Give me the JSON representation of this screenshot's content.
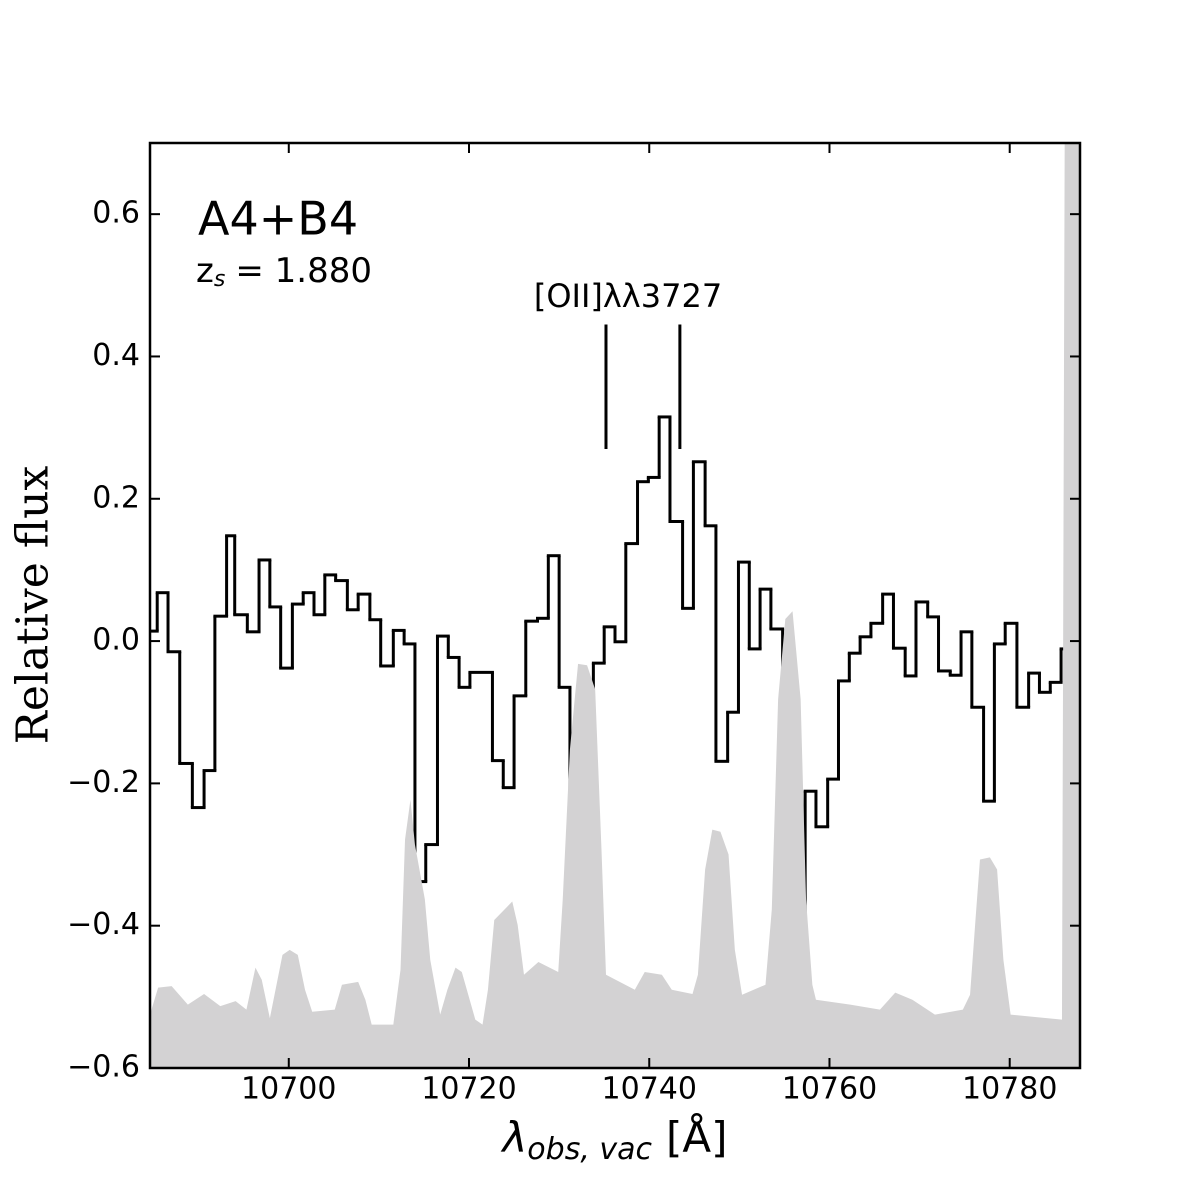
{
  "chart_data": {
    "type": "step",
    "ylabel": "Relative flux",
    "xlabel_symbol": "λ",
    "xlabel_sub": "obs, vac",
    "xlabel_unit": "[Å]",
    "annotation": "A4+B4",
    "redshift_symbol": "z",
    "redshift_sub": "s",
    "redshift_text": "= 1.880",
    "xlim": [
      10684.6,
      10787.8
    ],
    "ylim": [
      -0.6,
      0.7
    ],
    "xticks": [
      10700,
      10720,
      10740,
      10760,
      10780
    ],
    "yticks": [
      {
        "value": -0.6,
        "label": "−0.6"
      },
      {
        "value": -0.4,
        "label": "−0.4"
      },
      {
        "value": -0.2,
        "label": "−0.2"
      },
      {
        "value": 0.0,
        "label": "0.0"
      },
      0.2,
      0.4,
      0.6
    ],
    "lines": {
      "label": "[OII]λλ3727",
      "x": [
        10735.2,
        10743.4
      ],
      "y_range": [
        0.27,
        0.445
      ],
      "color": "#000000"
    },
    "series": [
      {
        "kind": "step",
        "color": "#000000",
        "x": [
          10684.6,
          10685.4,
          10686.6,
          10687.9,
          10689.3,
          10690.6,
          10691.8,
          10693.1,
          10694.0,
          10695.4,
          10696.7,
          10697.9,
          10699.1,
          10700.4,
          10701.6,
          10702.8,
          10704.0,
          10705.2,
          10706.5,
          10707.7,
          10709.0,
          10710.2,
          10711.6,
          10712.8,
          10714.0,
          10715.2,
          10716.5,
          10717.7,
          10718.9,
          10720.1,
          10722.6,
          10723.8,
          10725.0,
          10726.3,
          10727.6,
          10728.8,
          10730.0,
          10731.2,
          10732.4,
          10733.8,
          10735.0,
          10736.2,
          10737.4,
          10738.7,
          10739.9,
          10741.1,
          10742.3,
          10743.7,
          10744.9,
          10746.2,
          10747.4,
          10748.7,
          10749.9,
          10751.1,
          10752.3,
          10753.5,
          10754.8,
          10756.0,
          10757.3,
          10758.5,
          10759.8,
          10761.0,
          10762.2,
          10763.4,
          10764.6,
          10765.9,
          10767.1,
          10768.4,
          10769.6,
          10770.9,
          10772.1,
          10773.4,
          10774.6,
          10775.8,
          10777.1,
          10778.3,
          10779.5,
          10780.8,
          10782.1,
          10783.3,
          10784.5,
          10785.7,
          10786.9
        ],
        "values": [
          0.014,
          0.068,
          -0.015,
          -0.172,
          -0.234,
          -0.182,
          0.035,
          0.148,
          0.037,
          0.013,
          0.114,
          0.048,
          -0.038,
          0.052,
          0.068,
          0.037,
          0.093,
          0.085,
          0.044,
          0.066,
          0.03,
          -0.035,
          0.015,
          -0.004,
          -0.338,
          -0.286,
          0.007,
          -0.023,
          -0.065,
          -0.044,
          -0.168,
          -0.206,
          -0.077,
          0.028,
          0.032,
          0.12,
          -0.065,
          -0.507,
          -0.427,
          -0.031,
          0.02,
          -0.001,
          0.137,
          0.224,
          0.23,
          0.315,
          0.168,
          0.046,
          0.252,
          0.162,
          -0.169,
          -0.1,
          0.111,
          -0.011,
          0.073,
          0.017,
          -0.494,
          -0.472,
          -0.211,
          -0.261,
          -0.194,
          -0.056,
          -0.017,
          0.006,
          0.025,
          0.066,
          -0.01,
          -0.049,
          0.055,
          0.034,
          -0.042,
          -0.048,
          0.013,
          -0.093,
          -0.225,
          -0.004,
          0.025,
          -0.093,
          -0.045,
          -0.072,
          -0.058,
          -0.011,
          -0.03
        ]
      },
      {
        "kind": "area",
        "color": "#d3d2d3",
        "x": [
          10684.6,
          10685.5,
          10687.0,
          10688.8,
          10690.6,
          10692.4,
          10694.1,
          10695.3,
          10696.3,
          10697.0,
          10697.9,
          10699.3,
          10700.1,
          10701.0,
          10701.8,
          10702.6,
          10705.1,
          10705.9,
          10707.7,
          10708.5,
          10709.2,
          10711.6,
          10712.4,
          10712.9,
          10713.5,
          10714.0,
          10715.1,
          10715.7,
          10716.8,
          10717.6,
          10718.5,
          10719.2,
          10720.7,
          10721.5,
          10722.1,
          10722.8,
          10724.8,
          10725.4,
          10726.1,
          10727.7,
          10729.9,
          10730.4,
          10731.2,
          10732.1,
          10733.1,
          10734.0,
          10734.7,
          10735.2,
          10738.4,
          10739.5,
          10741.4,
          10742.5,
          10744.8,
          10745.4,
          10746.2,
          10747.0,
          10747.9,
          10748.8,
          10749.5,
          10750.3,
          10752.9,
          10753.6,
          10754.3,
          10755.1,
          10755.9,
          10756.8,
          10757.4,
          10758.1,
          10758.5,
          10762.3,
          10765.6,
          10767.3,
          10769.2,
          10771.7,
          10774.8,
          10775.6,
          10776.2,
          10776.7,
          10777.8,
          10778.6,
          10779.3,
          10780.1,
          10785.8,
          10786.1,
          10787.8
        ],
        "values": [
          -0.525,
          -0.487,
          -0.485,
          -0.511,
          -0.496,
          -0.513,
          -0.506,
          -0.518,
          -0.459,
          -0.476,
          -0.53,
          -0.441,
          -0.434,
          -0.441,
          -0.49,
          -0.521,
          -0.518,
          -0.483,
          -0.479,
          -0.504,
          -0.539,
          -0.539,
          -0.462,
          -0.279,
          -0.223,
          -0.286,
          -0.363,
          -0.448,
          -0.525,
          -0.49,
          -0.459,
          -0.465,
          -0.532,
          -0.539,
          -0.49,
          -0.392,
          -0.366,
          -0.399,
          -0.469,
          -0.451,
          -0.465,
          -0.363,
          -0.152,
          -0.032,
          -0.034,
          -0.068,
          -0.293,
          -0.469,
          -0.49,
          -0.465,
          -0.469,
          -0.49,
          -0.496,
          -0.469,
          -0.321,
          -0.265,
          -0.268,
          -0.3,
          -0.434,
          -0.497,
          -0.483,
          -0.377,
          -0.082,
          0.031,
          0.042,
          -0.082,
          -0.363,
          -0.483,
          -0.504,
          -0.511,
          -0.518,
          -0.494,
          -0.504,
          -0.525,
          -0.518,
          -0.497,
          -0.392,
          -0.307,
          -0.304,
          -0.321,
          -0.448,
          -0.525,
          -0.532,
          0.7,
          0.7
        ]
      }
    ]
  }
}
